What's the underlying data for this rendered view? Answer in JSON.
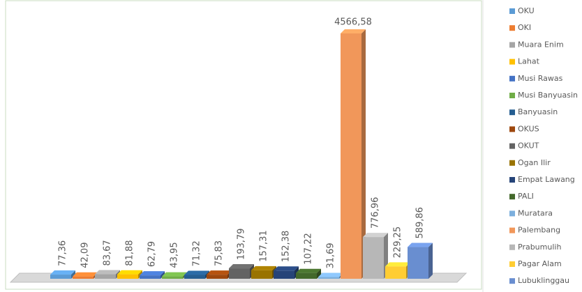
{
  "chart_data": {
    "type": "bar",
    "categories": [
      "OKU",
      "OKI",
      "Muara Enim",
      "Lahat",
      "Musi Rawas",
      "Musi Banyuasin",
      "Banyuasin",
      "OKUS",
      "OKUT",
      "Ogan Ilir",
      "Empat Lawang",
      "PALI",
      "Muratara",
      "Palembang",
      "Prabumulih",
      "Pagar Alam",
      "Lubuklinggau"
    ],
    "values": [
      77.36,
      42.09,
      83.67,
      81.88,
      62.79,
      43.95,
      71.32,
      75.83,
      193.79,
      157.31,
      152.38,
      107.22,
      31.69,
      4566.58,
      776.96,
      229.25,
      589.86
    ],
    "value_labels": [
      "77,36",
      "42,09",
      "83,67",
      "81,88",
      "62,79",
      "43,95",
      "71,32",
      "75,83",
      "193,79",
      "157,31",
      "152,38",
      "107,22",
      "31,69",
      "4566,58",
      "776,96",
      "229,25",
      "589,86"
    ],
    "colors": [
      "#5b9bd5",
      "#ed7d31",
      "#a5a5a5",
      "#ffc000",
      "#4472c4",
      "#70ad47",
      "#255e91",
      "#9e480e",
      "#636363",
      "#997300",
      "#264478",
      "#43682b",
      "#7cafdd",
      "#f1975a",
      "#b7b7b7",
      "#ffcd33",
      "#698ed0"
    ],
    "legend": "right"
  }
}
